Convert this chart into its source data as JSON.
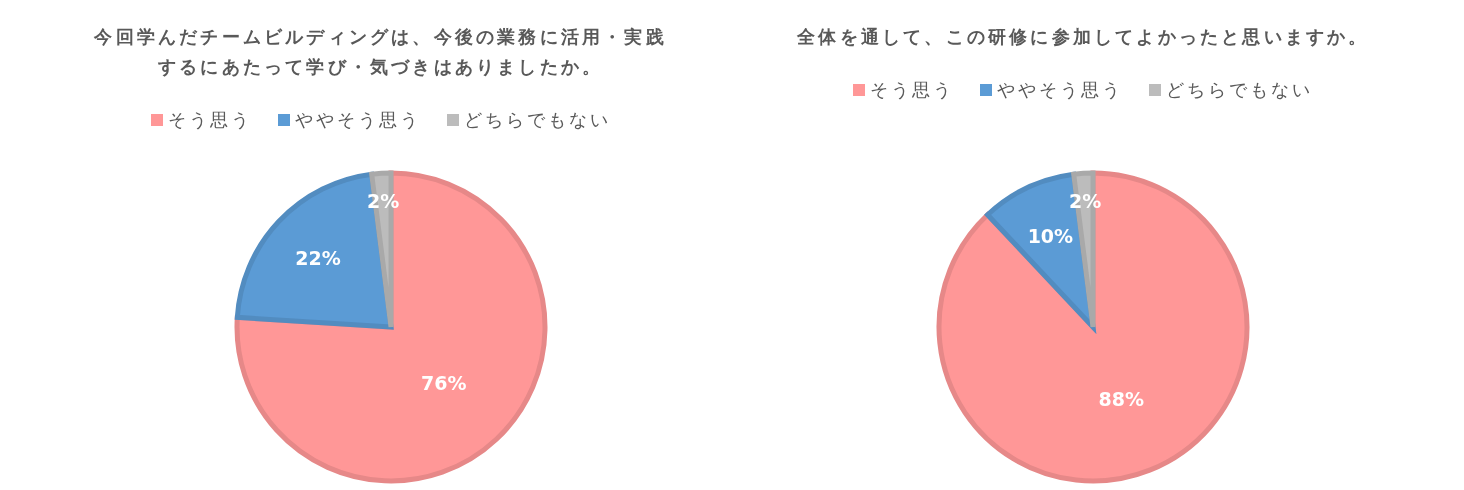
{
  "chart_data": [
    {
      "type": "pie",
      "title": "今回学んだチームビルディングは、今後の業務に活用・実践するにあたって学び・気づきはありましたか。",
      "categories": [
        "そう思う",
        "ややそう思う",
        "どちらでもない"
      ],
      "values": [
        76,
        22,
        2
      ],
      "colors": [
        "#ff9797",
        "#5b9bd5",
        "#bcbcbc"
      ],
      "legend": "top",
      "value_labels": [
        "76%",
        "22%",
        "2%"
      ]
    },
    {
      "type": "pie",
      "title": "全体を通して、この研修に参加してよかったと思いますか。",
      "categories": [
        "そう思う",
        "ややそう思う",
        "どちらでもない"
      ],
      "values": [
        88,
        10,
        2
      ],
      "colors": [
        "#ff9797",
        "#5b9bd5",
        "#bcbcbc"
      ],
      "legend": "top",
      "value_labels": [
        "88%",
        "10%",
        "2%"
      ]
    }
  ]
}
